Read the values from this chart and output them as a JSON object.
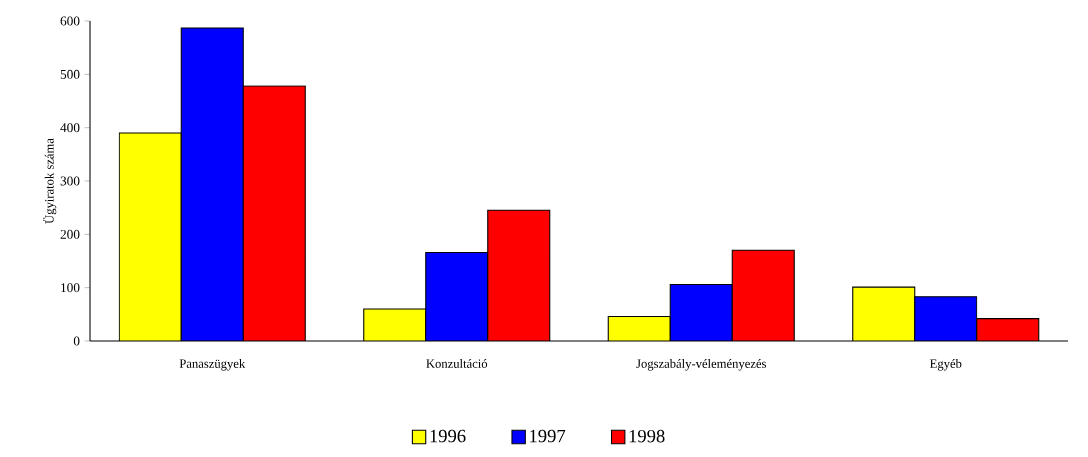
{
  "chart_data": {
    "type": "bar",
    "ylabel": "Ügyiratok száma",
    "categories": [
      "Panaszügyek",
      "Konzultáció",
      "Jogszabály-véleményezés",
      "Egyéb"
    ],
    "series": [
      {
        "name": "1996",
        "color": "#ffff00",
        "values": [
          390,
          60,
          46,
          101
        ]
      },
      {
        "name": "1997",
        "color": "#0000ff",
        "values": [
          587,
          166,
          106,
          83
        ]
      },
      {
        "name": "1998",
        "color": "#ff0000",
        "values": [
          478,
          245,
          170,
          42
        ]
      }
    ],
    "ylim": [
      0,
      600
    ],
    "yticks": [
      0,
      100,
      200,
      300,
      400,
      500,
      600
    ],
    "grid": false,
    "legend": "bottom"
  }
}
